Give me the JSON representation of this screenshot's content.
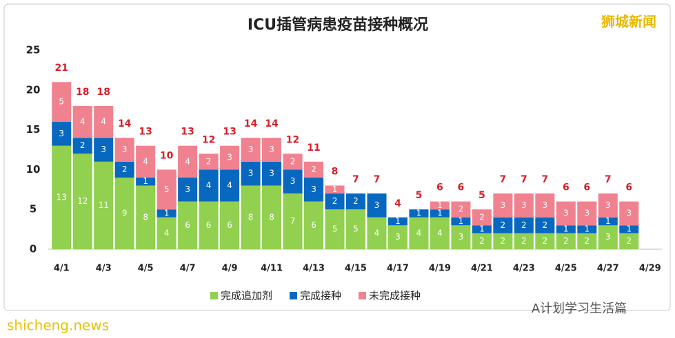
{
  "chart_data": {
    "type": "stacked_bar",
    "title": "ICU插管病患疫苗接种概况",
    "categories": [
      "4/1",
      null,
      "4/3",
      null,
      "4/5",
      null,
      "4/7",
      null,
      "4/9",
      null,
      "4/11",
      null,
      "4/13",
      null,
      "4/15",
      null,
      "4/17",
      null,
      "4/19",
      null,
      "4/21",
      null,
      "4/23",
      null,
      "4/25",
      null,
      "4/27",
      null,
      "4/29"
    ],
    "series": [
      {
        "name": "完成追加剂",
        "color": "#92d050",
        "values": [
          13,
          12,
          11,
          9,
          8,
          4,
          6,
          6,
          6,
          8,
          8,
          7,
          6,
          5,
          5,
          4,
          3,
          4,
          4,
          3,
          2,
          2,
          2,
          2,
          2,
          2,
          3,
          2,
          null
        ]
      },
      {
        "name": "完成接种",
        "color": "#0868c0",
        "values": [
          3,
          2,
          3,
          2,
          1,
          1,
          3,
          4,
          4,
          3,
          3,
          3,
          3,
          2,
          2,
          3,
          1,
          1,
          1,
          1,
          1,
          2,
          2,
          2,
          1,
          1,
          1,
          1,
          null
        ]
      },
      {
        "name": "未完成接种",
        "color": "#f08290",
        "values": [
          5,
          4,
          4,
          3,
          4,
          5,
          4,
          2,
          3,
          3,
          3,
          2,
          2,
          1,
          0,
          0,
          0,
          0,
          1,
          2,
          2,
          3,
          3,
          3,
          3,
          3,
          3,
          3,
          null
        ]
      }
    ],
    "totals": [
      21,
      18,
      18,
      14,
      13,
      10,
      13,
      12,
      13,
      14,
      14,
      12,
      11,
      8,
      7,
      7,
      4,
      5,
      6,
      6,
      5,
      7,
      7,
      7,
      6,
      6,
      7,
      6,
      null
    ],
    "ylim": [
      0,
      25
    ],
    "yticks": [
      0,
      5,
      10,
      15,
      20,
      25
    ],
    "legend": "bottom",
    "annotations": [
      "狮城新闻",
      "A计划学习生活篇",
      "shicheng.news"
    ]
  }
}
